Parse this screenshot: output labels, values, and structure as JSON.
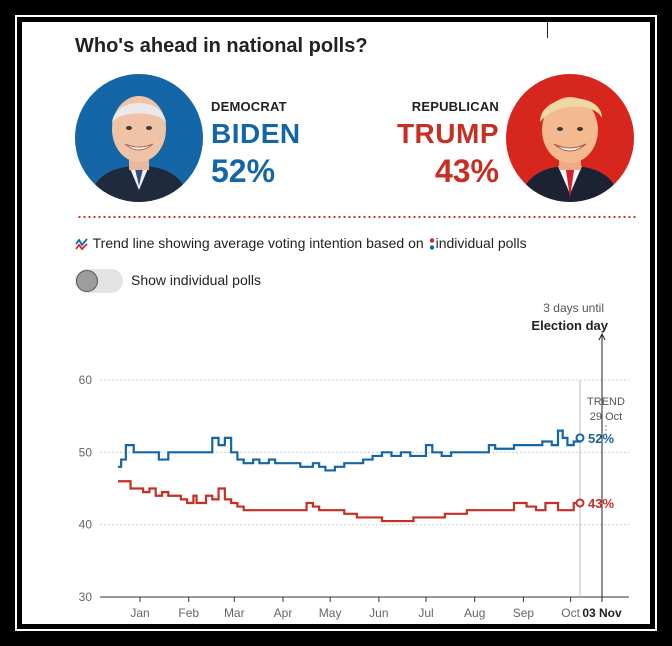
{
  "header": {
    "title": "Who's ahead in national polls?"
  },
  "candidates": {
    "democrat": {
      "party": "DEMOCRAT",
      "name": "BIDEN",
      "pct": "52%",
      "color": "#1466a7",
      "avatar_icon": "biden-portrait-icon"
    },
    "republican": {
      "party": "REPUBLICAN",
      "name": "TRUMP",
      "pct": "43%",
      "color": "#c52f24",
      "avatar_icon": "trump-portrait-icon"
    }
  },
  "legend": {
    "trend_text": "Trend line showing average voting intention based on",
    "polls_text": "individual polls"
  },
  "toggle": {
    "label": "Show individual polls",
    "state": "off"
  },
  "chart_data": {
    "type": "line",
    "title": "",
    "xlabel": "",
    "ylabel": "",
    "ylim": [
      30,
      60
    ],
    "yticks": [
      30,
      40,
      50,
      60
    ],
    "x_tick_labels": [
      "Jan",
      "Feb",
      "Mar",
      "Apr",
      "May",
      "Jun",
      "Jul",
      "Aug",
      "Sep",
      "Oct",
      "03 Nov"
    ],
    "grid": true,
    "annotations": {
      "trend": "TREND",
      "trend_date": "29 Oct",
      "countdown": "3 days until",
      "election_label": "Election day"
    },
    "series": [
      {
        "name": "BIDEN",
        "color": "#1466a7",
        "end_label": "52%",
        "points": [
          [
            0,
            48
          ],
          [
            2,
            49
          ],
          [
            5,
            51
          ],
          [
            10,
            50
          ],
          [
            14,
            50
          ],
          [
            20,
            50
          ],
          [
            26,
            49
          ],
          [
            32,
            50
          ],
          [
            38,
            50
          ],
          [
            44,
            50
          ],
          [
            50,
            50
          ],
          [
            56,
            50
          ],
          [
            60,
            52
          ],
          [
            64,
            51
          ],
          [
            68,
            52
          ],
          [
            72,
            50
          ],
          [
            76,
            49
          ],
          [
            80,
            48.5
          ],
          [
            86,
            49
          ],
          [
            90,
            48.5
          ],
          [
            96,
            49
          ],
          [
            100,
            48.5
          ],
          [
            104,
            48.5
          ],
          [
            110,
            48.5
          ],
          [
            116,
            48
          ],
          [
            120,
            48
          ],
          [
            124,
            48.5
          ],
          [
            128,
            48
          ],
          [
            132,
            47.5
          ],
          [
            138,
            48
          ],
          [
            144,
            48.5
          ],
          [
            150,
            48.5
          ],
          [
            156,
            49
          ],
          [
            162,
            49.5
          ],
          [
            168,
            50
          ],
          [
            174,
            49.5
          ],
          [
            180,
            50
          ],
          [
            186,
            49.5
          ],
          [
            192,
            49.5
          ],
          [
            196,
            51
          ],
          [
            200,
            50
          ],
          [
            206,
            49.5
          ],
          [
            212,
            50
          ],
          [
            218,
            50
          ],
          [
            224,
            50
          ],
          [
            230,
            50
          ],
          [
            236,
            51
          ],
          [
            240,
            50.5
          ],
          [
            246,
            50.5
          ],
          [
            252,
            51
          ],
          [
            258,
            51
          ],
          [
            264,
            51
          ],
          [
            270,
            51.5
          ],
          [
            276,
            51
          ],
          [
            280,
            53
          ],
          [
            283,
            52
          ],
          [
            286,
            51
          ],
          [
            290,
            51.5
          ],
          [
            294,
            52
          ]
        ]
      },
      {
        "name": "TRUMP",
        "color": "#c52f24",
        "end_label": "43%",
        "points": [
          [
            0,
            46
          ],
          [
            4,
            46
          ],
          [
            8,
            45
          ],
          [
            12,
            45
          ],
          [
            16,
            44.5
          ],
          [
            20,
            45
          ],
          [
            24,
            44
          ],
          [
            28,
            44.5
          ],
          [
            32,
            44
          ],
          [
            36,
            44
          ],
          [
            40,
            43.5
          ],
          [
            44,
            43
          ],
          [
            48,
            44
          ],
          [
            50,
            43
          ],
          [
            54,
            43
          ],
          [
            56,
            44
          ],
          [
            60,
            43.5
          ],
          [
            64,
            45
          ],
          [
            68,
            43.5
          ],
          [
            72,
            43
          ],
          [
            76,
            42.5
          ],
          [
            80,
            42
          ],
          [
            84,
            42
          ],
          [
            88,
            42
          ],
          [
            92,
            42
          ],
          [
            96,
            42
          ],
          [
            100,
            42
          ],
          [
            104,
            42
          ],
          [
            108,
            42
          ],
          [
            114,
            42
          ],
          [
            120,
            43
          ],
          [
            124,
            42.5
          ],
          [
            128,
            42
          ],
          [
            132,
            42
          ],
          [
            136,
            42
          ],
          [
            140,
            42
          ],
          [
            144,
            41.5
          ],
          [
            148,
            41.5
          ],
          [
            152,
            41
          ],
          [
            156,
            41
          ],
          [
            160,
            41
          ],
          [
            164,
            41
          ],
          [
            168,
            40.5
          ],
          [
            172,
            40.5
          ],
          [
            176,
            40.5
          ],
          [
            180,
            40.5
          ],
          [
            184,
            40.5
          ],
          [
            188,
            41
          ],
          [
            192,
            41
          ],
          [
            196,
            41
          ],
          [
            200,
            41
          ],
          [
            204,
            41
          ],
          [
            208,
            41.5
          ],
          [
            212,
            41.5
          ],
          [
            216,
            41.5
          ],
          [
            222,
            42
          ],
          [
            228,
            42
          ],
          [
            234,
            42
          ],
          [
            240,
            42
          ],
          [
            244,
            42
          ],
          [
            248,
            42
          ],
          [
            252,
            43
          ],
          [
            256,
            43
          ],
          [
            260,
            42.5
          ],
          [
            266,
            42
          ],
          [
            272,
            43
          ],
          [
            276,
            43
          ],
          [
            280,
            42
          ],
          [
            286,
            42
          ],
          [
            290,
            43
          ],
          [
            294,
            43
          ]
        ]
      }
    ],
    "x_range": [
      0,
      308
    ],
    "x_units": "days since 1 Jan 2020",
    "month_tick_days": [
      14,
      45,
      74,
      105,
      135,
      166,
      196,
      227,
      258,
      288,
      308
    ]
  }
}
